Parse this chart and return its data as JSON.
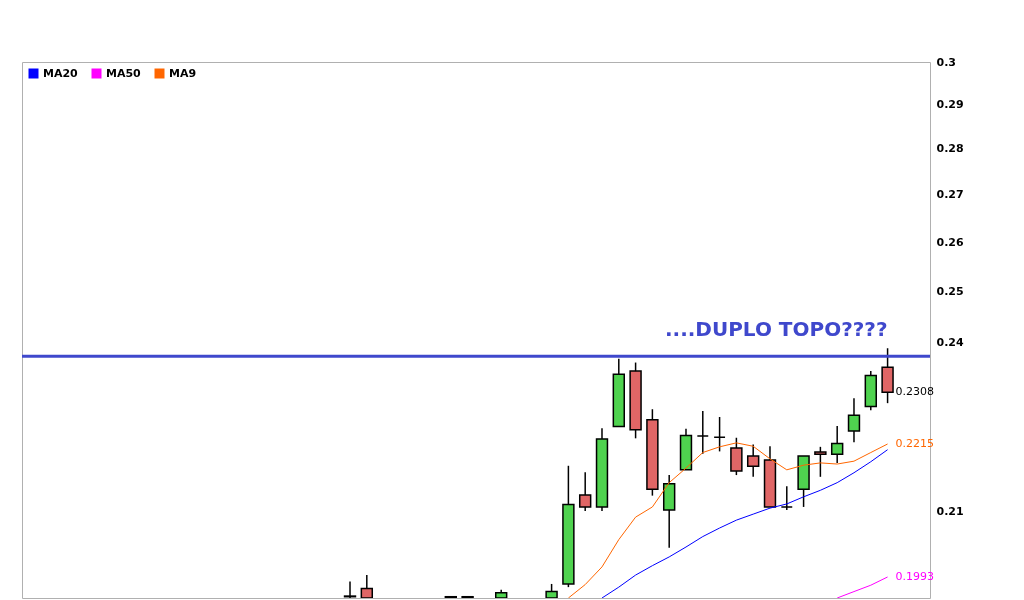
{
  "chart_data": {
    "type": "candlestick",
    "categories": [
      null,
      null,
      null,
      null,
      null,
      null,
      null,
      null,
      null,
      null,
      null,
      null,
      null,
      null,
      null,
      null,
      null,
      null,
      null,
      null,
      null,
      null,
      null,
      null,
      null,
      null,
      null,
      null,
      null,
      null,
      null,
      null,
      null,
      null,
      null,
      null,
      null,
      null,
      null,
      null,
      null,
      null,
      null,
      null,
      null,
      null,
      null,
      null,
      null,
      null,
      null,
      null,
      null,
      null
    ],
    "ohlc": [
      null,
      null,
      null,
      null,
      null,
      null,
      null,
      null,
      null,
      null,
      null,
      null,
      null,
      null,
      null,
      null,
      null,
      null,
      null,
      [
        0.1962,
        0.1986,
        0.196,
        0.1963
      ],
      [
        0.1975,
        0.1996,
        0.196,
        0.196
      ],
      null,
      null,
      null,
      null,
      [
        0.196,
        0.1962,
        0.196,
        0.1962
      ],
      [
        0.1962,
        0.1962,
        0.196,
        0.196
      ],
      null,
      [
        0.196,
        0.1973,
        0.196,
        0.1968
      ],
      null,
      null,
      [
        0.196,
        0.1982,
        0.196,
        0.197
      ],
      [
        0.1982,
        0.2177,
        0.1977,
        0.2111
      ],
      [
        0.2127,
        0.2166,
        0.21,
        0.2107
      ],
      [
        0.2107,
        0.2243,
        0.21,
        0.2224
      ],
      [
        0.2246,
        0.237,
        0.2246,
        0.2341
      ],
      [
        0.2347,
        0.2363,
        0.2225,
        0.224
      ],
      [
        0.2258,
        0.2277,
        0.2126,
        0.2137
      ],
      [
        0.2102,
        0.2161,
        0.204,
        0.2146
      ],
      [
        0.217,
        0.2242,
        0.217,
        0.223
      ],
      [
        0.2229,
        0.2274,
        0.2198,
        0.2229
      ],
      [
        0.2227,
        0.2263,
        0.2202,
        0.2227
      ],
      [
        0.2208,
        0.2226,
        0.2161,
        0.2168
      ],
      [
        0.2194,
        0.2214,
        0.2158,
        0.2176
      ],
      [
        0.2187,
        0.2211,
        0.2107,
        0.2107
      ],
      [
        0.2107,
        0.2142,
        0.2102,
        0.2107
      ],
      [
        0.2137,
        0.2194,
        0.2107,
        0.2194
      ],
      [
        0.2201,
        0.221,
        0.2158,
        0.2197
      ],
      [
        0.2197,
        0.2247,
        0.2182,
        0.2216
      ],
      [
        0.2238,
        0.2297,
        0.2218,
        0.2266
      ],
      [
        0.2282,
        0.2347,
        0.2275,
        0.2339
      ],
      [
        0.2354,
        0.239,
        0.2288,
        0.2308
      ],
      null,
      null
    ],
    "colors": [
      null,
      null,
      null,
      null,
      null,
      null,
      null,
      null,
      null,
      null,
      null,
      null,
      null,
      null,
      null,
      null,
      null,
      null,
      null,
      "#4fd34f",
      "#e06666",
      null,
      null,
      null,
      null,
      "#4fd34f",
      "#e06666",
      null,
      "#4fd34f",
      null,
      null,
      "#4fd34f",
      "#4fd34f",
      "#e06666",
      "#4fd34f",
      "#4fd34f",
      "#e06666",
      "#e06666",
      "#4fd34f",
      "#4fd34f",
      "#000000",
      "#000000",
      "#e06666",
      "#e06666",
      "#e06666",
      "#000000",
      "#4fd34f",
      "#e06666",
      "#4fd34f",
      "#4fd34f",
      "#4fd34f",
      "#e06666",
      null,
      null
    ],
    "value_labels": [
      null,
      null,
      null,
      null,
      null,
      null,
      null,
      null,
      null,
      null,
      null,
      null,
      null,
      null,
      null,
      null,
      null,
      null,
      null,
      null,
      null,
      null,
      null,
      null,
      null,
      null,
      null,
      null,
      null,
      null,
      null,
      null,
      null,
      null,
      null,
      null,
      null,
      null,
      null,
      null,
      null,
      null,
      null,
      null,
      null,
      null,
      null,
      null,
      null,
      null,
      null,
      "0.2308",
      null,
      null
    ],
    "series": [
      {
        "name": "MA20",
        "type": "line",
        "color": "#0000ff",
        "values": [
          null,
          null,
          null,
          null,
          null,
          null,
          null,
          null,
          null,
          null,
          null,
          null,
          null,
          null,
          null,
          null,
          null,
          null,
          null,
          null,
          null,
          null,
          null,
          null,
          null,
          null,
          null,
          null,
          null,
          null,
          null,
          null,
          null,
          null,
          0.196,
          0.1977,
          0.1996,
          0.2011,
          0.2025,
          0.2041,
          0.2058,
          0.2072,
          0.2085,
          0.2095,
          0.2105,
          0.2112,
          0.2124,
          0.2135,
          0.2148,
          0.2165,
          0.2184,
          0.2205,
          null,
          null
        ]
      },
      {
        "name": "MA50",
        "type": "line",
        "color": "#ff00ff",
        "values": [
          null,
          null,
          null,
          null,
          null,
          null,
          null,
          null,
          null,
          null,
          null,
          null,
          null,
          null,
          null,
          null,
          null,
          null,
          null,
          null,
          null,
          null,
          null,
          null,
          null,
          null,
          null,
          null,
          null,
          null,
          null,
          null,
          null,
          null,
          null,
          null,
          null,
          null,
          null,
          null,
          null,
          null,
          null,
          null,
          null,
          null,
          null,
          null,
          0.196,
          0.197,
          0.198,
          0.1993,
          null,
          null
        ],
        "value_labels": [
          null,
          null,
          null,
          null,
          null,
          null,
          null,
          null,
          null,
          null,
          null,
          null,
          null,
          null,
          null,
          null,
          null,
          null,
          null,
          null,
          null,
          null,
          null,
          null,
          null,
          null,
          null,
          null,
          null,
          null,
          null,
          null,
          null,
          null,
          null,
          null,
          null,
          null,
          null,
          null,
          null,
          null,
          null,
          null,
          null,
          null,
          null,
          null,
          null,
          null,
          null,
          "0.1993",
          null,
          null
        ]
      },
      {
        "name": "MA9",
        "type": "line",
        "color": "#ff6600",
        "values": [
          null,
          null,
          null,
          null,
          null,
          null,
          null,
          null,
          null,
          null,
          null,
          null,
          null,
          null,
          null,
          null,
          null,
          null,
          null,
          null,
          null,
          null,
          null,
          null,
          null,
          null,
          null,
          null,
          null,
          null,
          null,
          null,
          0.196,
          0.1981,
          0.2009,
          0.2053,
          0.209,
          0.2107,
          0.2148,
          0.2173,
          0.22,
          0.221,
          0.2217,
          0.2211,
          0.2189,
          0.217,
          0.2178,
          0.2182,
          0.218,
          0.2185,
          0.22,
          0.2215,
          null,
          null
        ],
        "value_labels": [
          null,
          null,
          null,
          null,
          null,
          null,
          null,
          null,
          null,
          null,
          null,
          null,
          null,
          null,
          null,
          null,
          null,
          null,
          null,
          null,
          null,
          null,
          null,
          null,
          null,
          null,
          null,
          null,
          null,
          null,
          null,
          null,
          null,
          null,
          null,
          null,
          null,
          null,
          null,
          null,
          null,
          null,
          null,
          null,
          null,
          null,
          null,
          null,
          null,
          null,
          null,
          "0.2215",
          null,
          null
        ]
      }
    ],
    "ylim": [
      0.196,
      0.3
    ],
    "yticks": [
      0.21,
      0.24,
      0.25,
      0.26,
      0.27,
      0.28,
      0.29,
      0.3
    ],
    "log": true,
    "ref_lines": [
      {
        "axis": "y",
        "value": 0.2375,
        "label": "....DUPLO TOPO????",
        "color": "#3f48cc"
      }
    ],
    "legend": "top left",
    "tick_labels": "y",
    "grid": false
  }
}
